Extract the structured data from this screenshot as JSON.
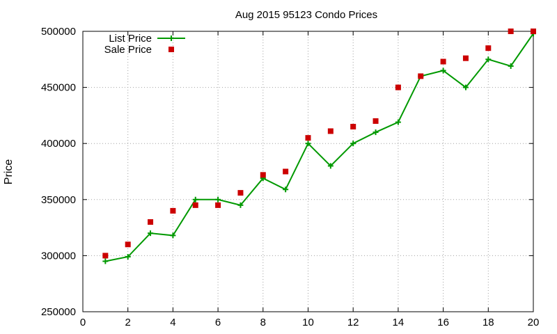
{
  "chart_data": {
    "type": "line",
    "title": "Aug 2015 95123 Condo Prices",
    "xlabel": "",
    "ylabel": "Price",
    "xlim": [
      0,
      20
    ],
    "ylim": [
      250000,
      500000
    ],
    "x_ticks": [
      0,
      2,
      4,
      6,
      8,
      10,
      12,
      14,
      16,
      18,
      20
    ],
    "y_ticks": [
      250000,
      300000,
      350000,
      400000,
      450000,
      500000
    ],
    "grid": true,
    "legend_position": "top-left",
    "series": [
      {
        "name": "List Price",
        "style": "line-with-plus-markers",
        "color": "#009900",
        "x": [
          1,
          2,
          3,
          4,
          5,
          6,
          7,
          8,
          9,
          10,
          11,
          12,
          13,
          14,
          15,
          16,
          17,
          18,
          19,
          20
        ],
        "values": [
          295000,
          299000,
          320000,
          318000,
          350000,
          350000,
          345000,
          369000,
          359000,
          400000,
          380000,
          400000,
          410000,
          419000,
          460000,
          465000,
          450000,
          475000,
          469000,
          498000
        ]
      },
      {
        "name": "Sale Price",
        "style": "square-points",
        "color": "#cc0000",
        "x": [
          1,
          2,
          3,
          4,
          5,
          6,
          7,
          8,
          9,
          10,
          11,
          12,
          13,
          14,
          15,
          16,
          17,
          18,
          19,
          20
        ],
        "values": [
          300000,
          310000,
          330000,
          340000,
          345000,
          345000,
          356000,
          372000,
          375000,
          405000,
          411000,
          415000,
          420000,
          450000,
          460000,
          473000,
          476000,
          485000,
          500000,
          500000
        ]
      }
    ]
  }
}
